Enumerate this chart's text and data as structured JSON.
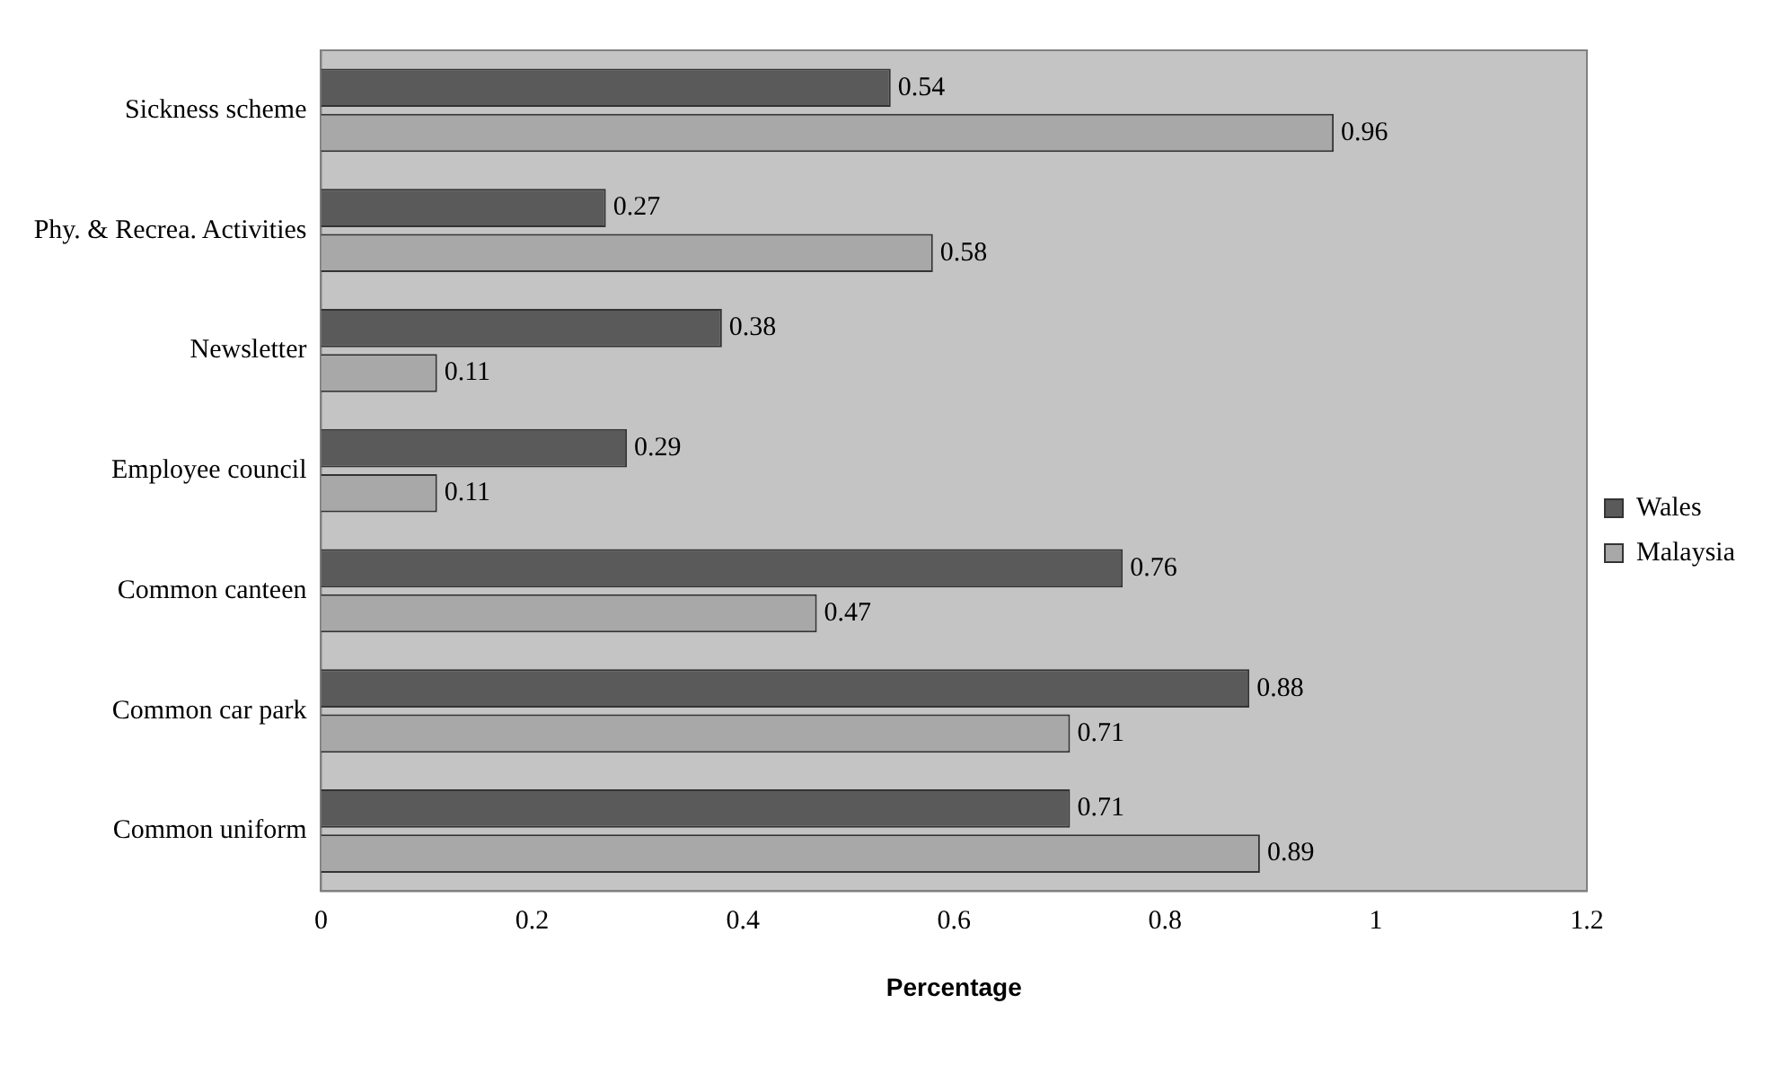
{
  "chart_data": {
    "type": "bar",
    "orientation": "horizontal",
    "xlabel": "Percentage",
    "categories": [
      "Sickness scheme",
      "Phy. & Recrea. Activities",
      "Newsletter",
      "Employee council",
      "Common canteen",
      "Common car park",
      "Common uniform"
    ],
    "series": [
      {
        "name": "Wales",
        "color": "#5a5a5a",
        "values": [
          0.54,
          0.27,
          0.38,
          0.29,
          0.76,
          0.88,
          0.71
        ]
      },
      {
        "name": "Malaysia",
        "color": "#a8a8a8",
        "values": [
          0.96,
          0.58,
          0.11,
          0.11,
          0.47,
          0.71,
          0.89
        ]
      }
    ],
    "xlim": [
      0,
      1.2
    ],
    "xticks": [
      0,
      0.2,
      0.4,
      0.6,
      0.8,
      1,
      1.2
    ],
    "grid": false,
    "legend": "right",
    "data_labels": true
  }
}
